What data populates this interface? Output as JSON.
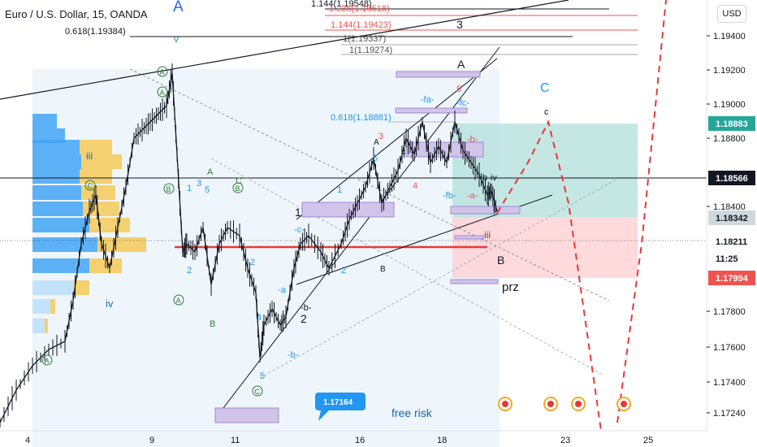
{
  "header": {
    "symbol_title": "Euro / U.S. Dollar, 15, OANDA",
    "currency_button": "USD"
  },
  "chart_data": {
    "type": "line",
    "title": "Euro / U.S. Dollar, 15, OANDA",
    "y_scale": "price",
    "ylim": [
      1.1715,
      1.2018
    ],
    "y_ticks": [
      "1.19400",
      "1.19200",
      "1.19000",
      "1.18800",
      "1.18400",
      "1.17800",
      "1.17600",
      "1.17400",
      "1.17240"
    ],
    "x_ticks": [
      "4",
      "9",
      "11",
      "16",
      "18",
      "23",
      "25"
    ],
    "price_labels": [
      {
        "text": "1.18883",
        "color": "#26a69a"
      },
      {
        "text": "1.18566",
        "color": "#131722"
      },
      {
        "text": "1.18342",
        "color": "#cfd8dc"
      },
      {
        "text": "1.18211",
        "color": "#131722"
      },
      {
        "text": "11:25",
        "color": "#131722"
      },
      {
        "text": "1.17994",
        "color": "#ef5350"
      }
    ],
    "price_callout": "1.17164",
    "fib_levels": [
      "1.144(1.19548)",
      "1.236(1.19518)",
      "1.144(1.19423)",
      "1(1.19337)",
      "1(1.19274)",
      "0.618(1.19384)",
      "0.618(1.18881)"
    ],
    "wave_labels": [
      "A",
      "3",
      "A",
      "C",
      "c",
      "1",
      "2",
      "B",
      "B",
      "prz",
      "iv",
      "iii",
      "-fa-",
      "-fc-",
      "-fb-",
      "-b-",
      "-a-",
      "-c-",
      "-b-",
      "-a",
      "b-iv",
      "-b-",
      "1",
      "2",
      "3",
      "4",
      "5",
      "4",
      "5"
    ],
    "annotations": [
      "free risk",
      "prz"
    ],
    "indicators": {
      "volume_profile": "left",
      "target_zone": "green-red"
    },
    "colors": {
      "green_zone": "#b2dfdb",
      "red_zone": "#ffcdd2",
      "red_line": "#e53935",
      "candle": "#131722",
      "fib_red": "#ef5350",
      "purple_box": "#d1c4e9",
      "blue_label": "#2196f3"
    }
  }
}
